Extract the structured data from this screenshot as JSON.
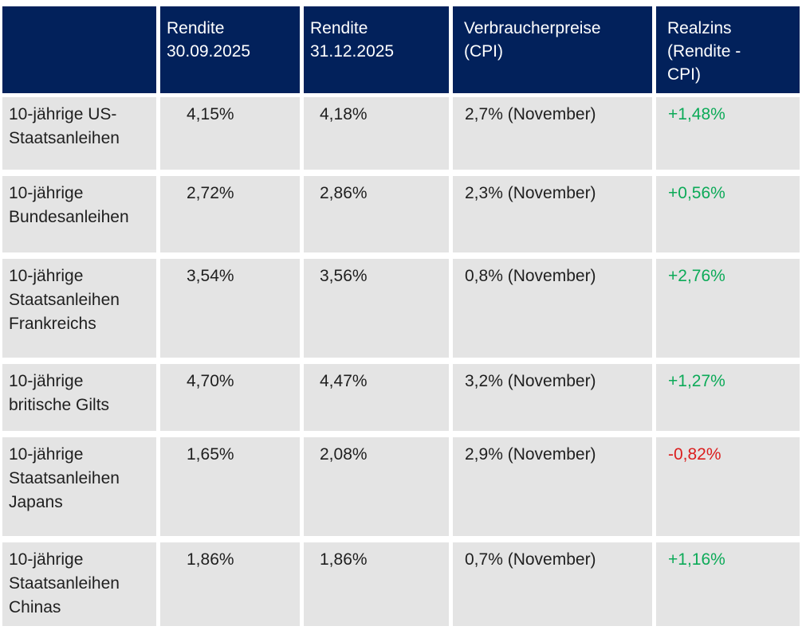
{
  "colors": {
    "header_bg": "#02215b",
    "header_text": "#ffffff",
    "cell_bg": "#e4e4e4",
    "body_text": "#1f1f1f",
    "positive": "#0caa58",
    "negative": "#db1e1e"
  },
  "table": {
    "columns": [
      {
        "id": "instrument",
        "label": ""
      },
      {
        "id": "rendite_sep",
        "label": "Rendite\n30.09.2025"
      },
      {
        "id": "rendite_dec",
        "label": "Rendite\n31.12.2025"
      },
      {
        "id": "cpi",
        "label": "Verbraucherpreise\n(CPI)"
      },
      {
        "id": "realzins",
        "label": "Realzins\n(Rendite -\nCPI)"
      }
    ],
    "rows": [
      {
        "label": "10-jährige US-\nStaatsanleihen",
        "rendite_sep": "4,15%",
        "rendite_dec": "4,18%",
        "cpi": "2,7% (November)",
        "realzins": "+1,48%",
        "realzins_trend": "positive"
      },
      {
        "label": "10-jährige\nBundesanleihen",
        "rendite_sep": "2,72%",
        "rendite_dec": "2,86%",
        "cpi": "2,3% (November)",
        "realzins": "+0,56%",
        "realzins_trend": "positive"
      },
      {
        "label": "10-jährige\nStaatsanleihen\nFrankreichs",
        "rendite_sep": "3,54%",
        "rendite_dec": "3,56%",
        "cpi": "0,8% (November)",
        "realzins": "+2,76%",
        "realzins_trend": "positive"
      },
      {
        "label": "10-jährige\nbritische Gilts",
        "rendite_sep": "4,70%",
        "rendite_dec": "4,47%",
        "cpi": "3,2% (November)",
        "realzins": "+1,27%",
        "realzins_trend": "positive"
      },
      {
        "label": "10-jährige\nStaatsanleihen\nJapans",
        "rendite_sep": "1,65%",
        "rendite_dec": "2,08%",
        "cpi": "2,9% (November)",
        "realzins": "-0,82%",
        "realzins_trend": "negative"
      },
      {
        "label": "10-jährige\nStaatsanleihen\nChinas",
        "rendite_sep": "1,86%",
        "rendite_dec": "1,86%",
        "cpi": "0,7% (November)",
        "realzins": "+1,16%",
        "realzins_trend": "positive"
      }
    ]
  },
  "chart_data": {
    "type": "table",
    "columns": [
      "",
      "Rendite 30.09.2025",
      "Rendite 31.12.2025",
      "Verbraucherpreise (CPI)",
      "Realzins (Rendite - CPI)"
    ],
    "rows": [
      [
        "10-jährige US-Staatsanleihen",
        "4,15%",
        "4,18%",
        "2,7% (November)",
        "+1,48%"
      ],
      [
        "10-jährige Bundesanleihen",
        "2,72%",
        "2,86%",
        "2,3% (November)",
        "+0,56%"
      ],
      [
        "10-jährige Staatsanleihen Frankreichs",
        "3,54%",
        "3,56%",
        "0,8% (November)",
        "+2,76%"
      ],
      [
        "10-jährige britische Gilts",
        "4,70%",
        "4,47%",
        "3,2% (November)",
        "+1,27%"
      ],
      [
        "10-jährige Staatsanleihen Japans",
        "1,65%",
        "2,08%",
        "2,9% (November)",
        "-0,82%"
      ],
      [
        "10-jährige Staatsanleihen Chinas",
        "1,86%",
        "1,86%",
        "0,7% (November)",
        "+1,16%"
      ]
    ],
    "numeric": {
      "rendite_30_09_2025_pct": [
        4.15,
        2.72,
        3.54,
        4.7,
        1.65,
        1.86
      ],
      "rendite_31_12_2025_pct": [
        4.18,
        2.86,
        3.56,
        4.47,
        2.08,
        1.86
      ],
      "verbraucherpreise_cpi_november_pct": [
        2.7,
        2.3,
        0.8,
        3.2,
        2.9,
        0.7
      ],
      "realzins_pct": [
        1.48,
        0.56,
        2.76,
        1.27,
        -0.82,
        1.16
      ]
    }
  }
}
